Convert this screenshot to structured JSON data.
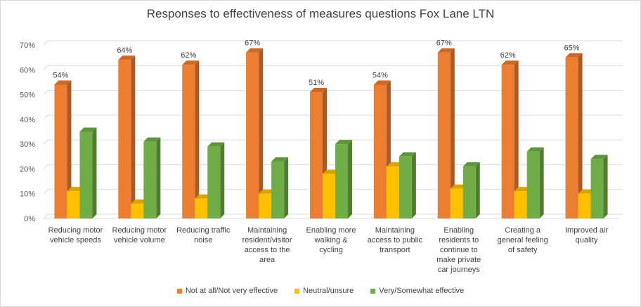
{
  "chart_data": {
    "type": "bar",
    "title": "Responses to effectiveness of measures questions Fox Lane LTN",
    "categories": [
      [
        "Reducing motor",
        "vehicle speeds"
      ],
      [
        "Reducing motor",
        "vehicle volume"
      ],
      [
        "Reducing traffic",
        "noise"
      ],
      [
        "Maintaining",
        "resident/visitor",
        "access to the",
        "area"
      ],
      [
        "Enabling more",
        "walking &",
        "cycling"
      ],
      [
        "Maintaining",
        "access to public",
        "transport"
      ],
      [
        "Enabling",
        "residents to",
        "continue to",
        "make private",
        "car journeys"
      ],
      [
        "Creating a",
        "general feeling",
        "of safety"
      ],
      [
        "Improved air",
        "quality"
      ]
    ],
    "series": [
      {
        "name": "Not at all/Not very effective",
        "color": "#ED7D31",
        "values": [
          54,
          64,
          62,
          67,
          51,
          54,
          67,
          62,
          65
        ],
        "labels": [
          "54%",
          "64%",
          "62%",
          "67%",
          "51%",
          "54%",
          "67%",
          "62%",
          "65%"
        ]
      },
      {
        "name": "Neutral/unsure",
        "color": "#FFC000",
        "values": [
          11,
          6,
          8,
          10,
          18,
          21,
          12,
          11,
          10
        ]
      },
      {
        "name": "Very/Somewhat effective",
        "color": "#70AD47",
        "values": [
          35,
          31,
          29,
          23,
          30,
          25,
          21,
          27,
          24
        ]
      }
    ],
    "yticks": [
      "0%",
      "10%",
      "20%",
      "30%",
      "40%",
      "50%",
      "60%",
      "70%"
    ],
    "ylim": [
      0,
      70
    ],
    "grid": true,
    "legend_position": "bottom"
  }
}
